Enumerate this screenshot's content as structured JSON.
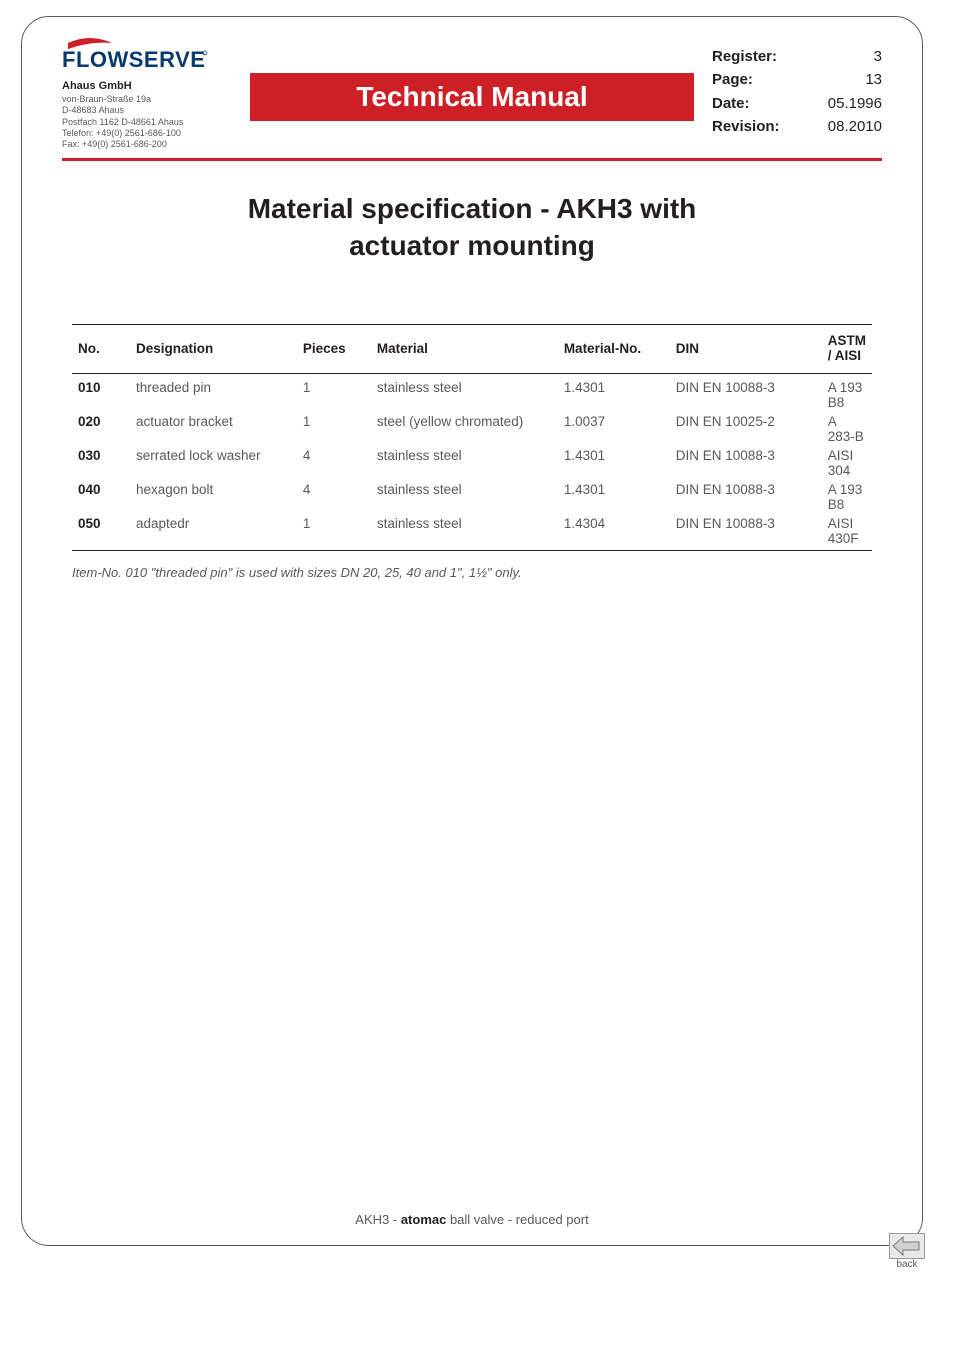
{
  "brand": {
    "logo_text": "FLOWSERVE",
    "logo_color": "#cc2026",
    "logo_text_color": "#003a70"
  },
  "company": {
    "name": "Ahaus GmbH",
    "lines": [
      "von-Braun-Straße 19a",
      "D-48683 Ahaus",
      "Postfach 1162 D-48661 Ahaus",
      "Telefon: +49(0) 2561-686-100",
      "Fax: +49(0) 2561-686-200"
    ]
  },
  "banner_title": "Technical Manual",
  "meta": {
    "rows": [
      {
        "label": "Register:",
        "value": "3"
      },
      {
        "label": "Page:",
        "value": "13"
      },
      {
        "label": "Date:",
        "value": "05.1996"
      },
      {
        "label": "Revision:",
        "value": "08.2010"
      }
    ]
  },
  "doc_title_line1": "Material specification - AKH3 with",
  "doc_title_line2": "actuator mounting",
  "table": {
    "headers": [
      "No.",
      "Designation",
      "Pieces",
      "Material",
      "Material-No.",
      "DIN",
      "ASTM / AISI"
    ],
    "rows": [
      [
        "010",
        "threaded pin",
        "1",
        "stainless steel",
        "1.4301",
        "DIN EN 10088-3",
        "A 193 B8"
      ],
      [
        "020",
        "actuator bracket",
        "1",
        "steel (yellow chromated)",
        "1.0037",
        "DIN EN 10025-2",
        "A 283-B"
      ],
      [
        "030",
        "serrated lock washer",
        "4",
        "stainless steel",
        "1.4301",
        "DIN EN 10088-3",
        "AISI 304"
      ],
      [
        "040",
        "hexagon bolt",
        "4",
        "stainless steel",
        "1.4301",
        "DIN EN 10088-3",
        "A 193 B8"
      ],
      [
        "050",
        "adaptedr",
        "1",
        "stainless steel",
        "1.4304",
        "DIN EN 10088-3",
        "AISI 430F"
      ]
    ]
  },
  "footnote": "Item-No. 010  \"threaded pin\"  is used  with sizes DN 20, 25, 40 and 1\", 1½\" only.",
  "footer": {
    "prefix": "AKH3 - ",
    "bold": "atomac",
    "suffix": " ball valve - reduced port"
  },
  "back_label": "back",
  "colors": {
    "accent": "#cc2026",
    "text": "#58595b",
    "heading": "#231f20",
    "rule": "#231f20",
    "background": "#ffffff"
  }
}
